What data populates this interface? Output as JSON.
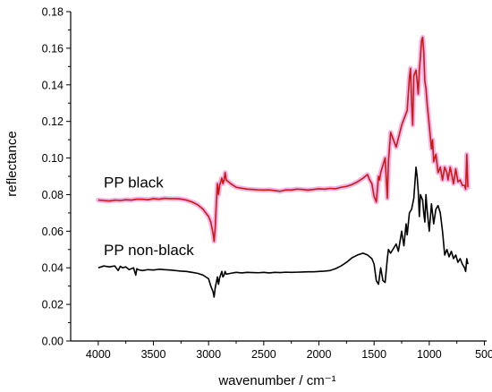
{
  "chart_data": {
    "type": "line",
    "title": "",
    "xlabel": "wavenumber / cm⁻¹",
    "ylabel": "reflectance",
    "xlim": [
      4250,
      480
    ],
    "ylim": [
      0.0,
      0.18
    ],
    "x_reversed": true,
    "grid": false,
    "x_ticks": [
      4000,
      3500,
      3000,
      2500,
      2000,
      1500,
      1000,
      500
    ],
    "x_tick_labels": [
      "4000",
      "3500",
      "3000",
      "2500",
      "2000",
      "1500",
      "1000",
      "500"
    ],
    "y_ticks": [
      0.0,
      0.02,
      0.04,
      0.06,
      0.08,
      0.1,
      0.12,
      0.14,
      0.16,
      0.18
    ],
    "y_tick_labels": [
      "0.00",
      "0.02",
      "0.04",
      "0.06",
      "0.08",
      "0.10",
      "0.12",
      "0.14",
      "0.16",
      "0.18"
    ],
    "annotations": [
      {
        "text": "PP black",
        "x": 3950,
        "y": 0.084
      },
      {
        "text": "PP non-black",
        "x": 3950,
        "y": 0.047
      }
    ],
    "series": [
      {
        "label": "PP black",
        "color": "#cc1a0f",
        "halo_color": "#f0a8e8",
        "x": [
          4000,
          3950,
          3900,
          3850,
          3800,
          3750,
          3700,
          3650,
          3600,
          3550,
          3500,
          3450,
          3400,
          3350,
          3300,
          3250,
          3200,
          3150,
          3100,
          3050,
          3000,
          2980,
          2960,
          2950,
          2940,
          2930,
          2920,
          2910,
          2900,
          2880,
          2870,
          2860,
          2850,
          2840,
          2800,
          2750,
          2700,
          2650,
          2600,
          2550,
          2500,
          2450,
          2400,
          2350,
          2300,
          2250,
          2200,
          2150,
          2100,
          2050,
          2000,
          1950,
          1900,
          1850,
          1800,
          1750,
          1700,
          1650,
          1600,
          1560,
          1540,
          1520,
          1500,
          1480,
          1460,
          1450,
          1440,
          1420,
          1400,
          1380,
          1375,
          1370,
          1350,
          1300,
          1250,
          1200,
          1180,
          1170,
          1160,
          1150,
          1140,
          1120,
          1110,
          1100,
          1090,
          1080,
          1070,
          1060,
          1050,
          1040,
          1030,
          1020,
          1000,
          980,
          970,
          960,
          940,
          920,
          900,
          880,
          860,
          840,
          830,
          810,
          800,
          780,
          760,
          740,
          720,
          700,
          680,
          670,
          660,
          650
        ],
        "y": [
          0.077,
          0.0768,
          0.0765,
          0.077,
          0.0768,
          0.0772,
          0.077,
          0.0775,
          0.0775,
          0.0772,
          0.0778,
          0.0775,
          0.078,
          0.0778,
          0.0778,
          0.0776,
          0.077,
          0.076,
          0.0745,
          0.072,
          0.068,
          0.065,
          0.059,
          0.0545,
          0.062,
          0.075,
          0.086,
          0.08,
          0.085,
          0.089,
          0.086,
          0.088,
          0.092,
          0.088,
          0.086,
          0.084,
          0.0835,
          0.083,
          0.0828,
          0.0826,
          0.0825,
          0.0826,
          0.0822,
          0.0818,
          0.0826,
          0.0825,
          0.083,
          0.0828,
          0.0825,
          0.0828,
          0.0832,
          0.083,
          0.0834,
          0.0832,
          0.084,
          0.0845,
          0.0855,
          0.087,
          0.089,
          0.091,
          0.088,
          0.086,
          0.079,
          0.076,
          0.09,
          0.088,
          0.092,
          0.096,
          0.1,
          0.078,
          0.088,
          0.098,
          0.114,
          0.106,
          0.118,
          0.126,
          0.144,
          0.149,
          0.13,
          0.118,
          0.145,
          0.148,
          0.142,
          0.135,
          0.148,
          0.155,
          0.164,
          0.166,
          0.158,
          0.142,
          0.138,
          0.13,
          0.118,
          0.105,
          0.11,
          0.098,
          0.102,
          0.092,
          0.095,
          0.088,
          0.095,
          0.092,
          0.088,
          0.095,
          0.092,
          0.086,
          0.094,
          0.087,
          0.088,
          0.085,
          0.085,
          0.083,
          0.102,
          0.084
        ]
      },
      {
        "label": "PP non-black",
        "color": "#000000",
        "x": [
          4000,
          3950,
          3900,
          3850,
          3820,
          3800,
          3780,
          3750,
          3720,
          3700,
          3680,
          3660,
          3650,
          3640,
          3600,
          3550,
          3500,
          3450,
          3400,
          3350,
          3300,
          3250,
          3200,
          3150,
          3100,
          3050,
          3000,
          2980,
          2960,
          2950,
          2940,
          2930,
          2920,
          2910,
          2900,
          2880,
          2870,
          2860,
          2850,
          2840,
          2800,
          2750,
          2700,
          2650,
          2600,
          2550,
          2500,
          2450,
          2400,
          2350,
          2300,
          2250,
          2200,
          2150,
          2100,
          2050,
          2000,
          1950,
          1900,
          1850,
          1800,
          1750,
          1700,
          1650,
          1600,
          1560,
          1520,
          1500,
          1480,
          1460,
          1440,
          1420,
          1400,
          1380,
          1370,
          1350,
          1300,
          1280,
          1250,
          1230,
          1210,
          1200,
          1180,
          1160,
          1140,
          1120,
          1110,
          1100,
          1090,
          1080,
          1060,
          1050,
          1040,
          1030,
          1020,
          1000,
          980,
          960,
          940,
          920,
          900,
          880,
          860,
          840,
          820,
          800,
          780,
          760,
          740,
          720,
          700,
          680,
          670,
          660,
          650
        ],
        "y": [
          0.04,
          0.041,
          0.0405,
          0.041,
          0.0385,
          0.0408,
          0.04,
          0.0405,
          0.039,
          0.0395,
          0.04,
          0.036,
          0.0395,
          0.039,
          0.0385,
          0.039,
          0.0388,
          0.0392,
          0.039,
          0.0388,
          0.0385,
          0.0382,
          0.038,
          0.0375,
          0.037,
          0.036,
          0.034,
          0.03,
          0.027,
          0.024,
          0.029,
          0.032,
          0.035,
          0.031,
          0.0345,
          0.038,
          0.035,
          0.036,
          0.038,
          0.0365,
          0.037,
          0.0375,
          0.0372,
          0.0375,
          0.0374,
          0.0373,
          0.0375,
          0.0372,
          0.0375,
          0.0374,
          0.0376,
          0.0375,
          0.0376,
          0.0377,
          0.0378,
          0.0378,
          0.038,
          0.0382,
          0.0385,
          0.0395,
          0.041,
          0.043,
          0.0455,
          0.047,
          0.048,
          0.047,
          0.045,
          0.042,
          0.033,
          0.031,
          0.04,
          0.033,
          0.032,
          0.045,
          0.05,
          0.048,
          0.053,
          0.049,
          0.06,
          0.052,
          0.064,
          0.058,
          0.07,
          0.072,
          0.078,
          0.095,
          0.09,
          0.082,
          0.068,
          0.08,
          0.077,
          0.07,
          0.065,
          0.08,
          0.072,
          0.06,
          0.075,
          0.064,
          0.072,
          0.074,
          0.07,
          0.06,
          0.047,
          0.05,
          0.046,
          0.049,
          0.045,
          0.047,
          0.043,
          0.045,
          0.042,
          0.04,
          0.038,
          0.045,
          0.042
        ]
      }
    ]
  }
}
